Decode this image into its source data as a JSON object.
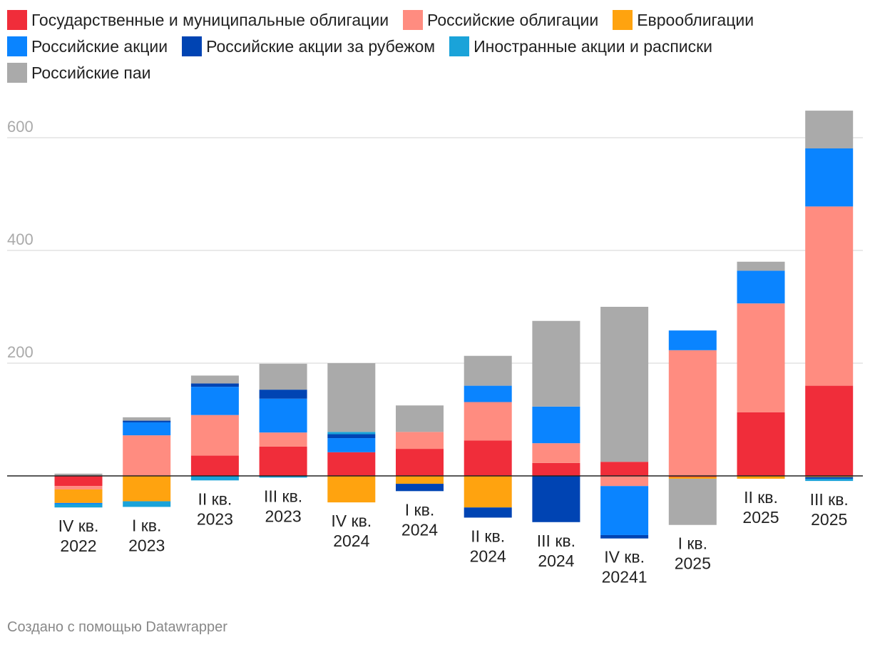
{
  "chart_data": {
    "type": "bar",
    "stacked": true,
    "title": "",
    "xlabel": "",
    "ylabel": "",
    "ylim": [
      -100,
      660
    ],
    "yticks": [
      200,
      400,
      600
    ],
    "grid": true,
    "legend_position": "top",
    "categories": [
      "IV кв. 2022",
      "I кв. 2023",
      "II кв. 2023",
      "III кв. 2023",
      "IV кв. 2024",
      "I кв. 2024",
      "II кв. 2024",
      "III кв. 2024",
      "IV кв. 20241",
      "I кв. 2025",
      "II кв. 2025",
      "III кв. 2025"
    ],
    "category_lines": [
      [
        "IV кв.",
        "2022"
      ],
      [
        "I кв.",
        "2023"
      ],
      [
        "II кв.",
        "2023"
      ],
      [
        "III кв.",
        "2023"
      ],
      [
        "IV кв.",
        "2024"
      ],
      [
        "I кв.",
        "2024"
      ],
      [
        "II кв.",
        "2024"
      ],
      [
        "III кв.",
        "2024"
      ],
      [
        "IV кв.",
        "20241"
      ],
      [
        "I кв.",
        "2025"
      ],
      [
        "II кв.",
        "2025"
      ],
      [
        "III кв.",
        "2025"
      ]
    ],
    "series": [
      {
        "name": "Государственные и муниципальные облигации",
        "color": "#f02d3a",
        "values": [
          -18,
          0,
          36,
          52,
          42,
          48,
          63,
          23,
          25,
          -2,
          113,
          160
        ]
      },
      {
        "name": "Российские облигации",
        "color": "#ff8c80",
        "values": [
          -6,
          72,
          72,
          25,
          0,
          30,
          68,
          35,
          -18,
          223,
          193,
          318
        ]
      },
      {
        "name": "Еврооблигации",
        "color": "#ffa30f",
        "values": [
          -24,
          -45,
          0,
          0,
          -47,
          -14,
          -56,
          0,
          0,
          -3,
          -5,
          -2
        ]
      },
      {
        "name": "Российские акции",
        "color": "#0a84ff",
        "values": [
          -2,
          23,
          50,
          60,
          25,
          0,
          29,
          65,
          -87,
          35,
          58,
          103
        ]
      },
      {
        "name": "Российские акции за рубежом",
        "color": "#0044b3",
        "values": [
          0,
          3,
          6,
          16,
          7,
          -13,
          -18,
          -82,
          -6,
          0,
          0,
          -3
        ]
      },
      {
        "name": "Иностранные акции и расписки",
        "color": "#1aa3d9",
        "values": [
          -6,
          -10,
          -8,
          -3,
          4,
          0,
          0,
          0,
          0,
          0,
          0,
          -4
        ]
      },
      {
        "name": "Российские паи",
        "color": "#aaaaaa",
        "values": [
          4,
          6,
          14,
          46,
          122,
          47,
          53,
          152,
          275,
          -82,
          16,
          67
        ]
      }
    ]
  },
  "credit": "Создано с помощью Datawrapper"
}
